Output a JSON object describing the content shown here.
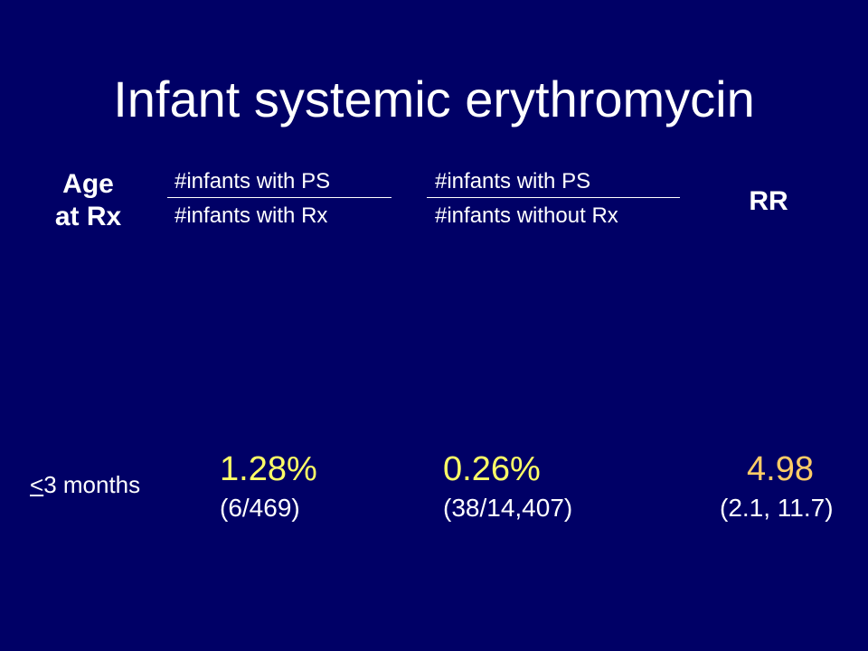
{
  "slide": {
    "title": "Infant systemic erythromycin"
  },
  "headers": {
    "age_line1": "Age",
    "age_line2": "at Rx",
    "exposed_numerator": "#infants with PS",
    "exposed_denominator": "#infants with Rx",
    "unexposed_numerator": "#infants with PS",
    "unexposed_denominator": "#infants without Rx",
    "rr": "RR"
  },
  "rows": [
    {
      "age_symbol": "<",
      "age_text": "3 months",
      "exposed_pct": "1.28%",
      "exposed_count": "(6/469)",
      "unexposed_pct": "0.26%",
      "unexposed_count": "(38/14,407)",
      "rr": "4.98",
      "rr_ci": "(2.1, 11.7)"
    }
  ],
  "colors": {
    "background": "#000066",
    "text": "#ffffff",
    "exposed_unexposed_values": "#ffff66",
    "rr_value": "#ffcc66"
  }
}
